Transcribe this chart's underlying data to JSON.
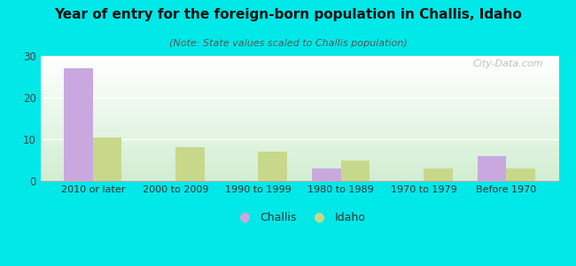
{
  "title": "Year of entry for the foreign-born population in Challis, Idaho",
  "subtitle": "(Note: State values scaled to Challis population)",
  "categories": [
    "2010 or later",
    "2000 to 2009",
    "1990 to 1999",
    "1980 to 1989",
    "1970 to 1979",
    "Before 1970"
  ],
  "challis_values": [
    27,
    0,
    0,
    3,
    0,
    6
  ],
  "idaho_values": [
    10.5,
    8,
    7,
    5,
    3,
    3
  ],
  "challis_color": "#c9a8e0",
  "idaho_color": "#c8d88a",
  "background_color": "#00e8e8",
  "ylim": [
    0,
    30
  ],
  "yticks": [
    0,
    10,
    20,
    30
  ],
  "bar_width": 0.35,
  "legend_labels": [
    "Challis",
    "Idaho"
  ],
  "watermark": "City-Data.com",
  "title_fontsize": 11,
  "subtitle_fontsize": 8
}
